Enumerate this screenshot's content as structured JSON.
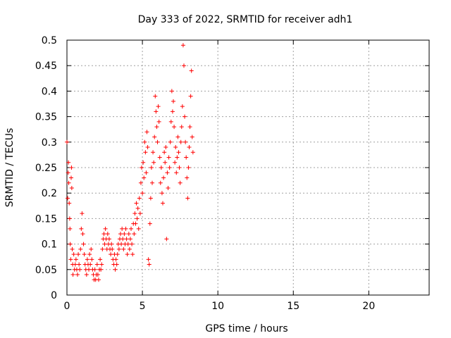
{
  "chart_data": {
    "type": "scatter",
    "title": "Day 333 of 2022, SRMTID for receiver adh1",
    "xlabel": "GPS time / hours",
    "ylabel": "SRMTID / TECUs",
    "xlim": [
      0,
      24
    ],
    "ylim": [
      0,
      0.5
    ],
    "x_ticks": [
      0,
      5,
      10,
      15,
      20
    ],
    "y_ticks": [
      0,
      0.05,
      0.1,
      0.15,
      0.2,
      0.25,
      0.3,
      0.35,
      0.4,
      0.45,
      0.5
    ],
    "x_tick_labels": [
      "0",
      "5",
      "10",
      "15",
      "20"
    ],
    "y_tick_labels": [
      "0",
      "0.05",
      "0.1",
      "0.15",
      "0.2",
      "0.25",
      "0.3",
      "0.35",
      "0.4",
      "0.45",
      "0.5"
    ],
    "grid": true,
    "marker": "+",
    "series": [
      {
        "name": "SRMTID",
        "color": "#ff0000",
        "points": [
          [
            0.0,
            0.3
          ],
          [
            0.05,
            0.19
          ],
          [
            0.08,
            0.24
          ],
          [
            0.1,
            0.26
          ],
          [
            0.12,
            0.22
          ],
          [
            0.15,
            0.18
          ],
          [
            0.18,
            0.15
          ],
          [
            0.2,
            0.13
          ],
          [
            0.22,
            0.1
          ],
          [
            0.25,
            0.07
          ],
          [
            0.28,
            0.23
          ],
          [
            0.3,
            0.25
          ],
          [
            0.32,
            0.21
          ],
          [
            0.35,
            0.09
          ],
          [
            0.38,
            0.06
          ],
          [
            0.4,
            0.04
          ],
          [
            0.45,
            0.08
          ],
          [
            0.5,
            0.05
          ],
          [
            0.55,
            0.06
          ],
          [
            0.6,
            0.07
          ],
          [
            0.65,
            0.05
          ],
          [
            0.7,
            0.04
          ],
          [
            0.75,
            0.08
          ],
          [
            0.8,
            0.06
          ],
          [
            0.85,
            0.05
          ],
          [
            0.9,
            0.09
          ],
          [
            0.95,
            0.13
          ],
          [
            1.0,
            0.16
          ],
          [
            1.05,
            0.12
          ],
          [
            1.1,
            0.1
          ],
          [
            1.15,
            0.08
          ],
          [
            1.2,
            0.06
          ],
          [
            1.25,
            0.05
          ],
          [
            1.3,
            0.04
          ],
          [
            1.35,
            0.07
          ],
          [
            1.4,
            0.06
          ],
          [
            1.45,
            0.05
          ],
          [
            1.5,
            0.08
          ],
          [
            1.55,
            0.06
          ],
          [
            1.6,
            0.09
          ],
          [
            1.65,
            0.07
          ],
          [
            1.7,
            0.05
          ],
          [
            1.75,
            0.04
          ],
          [
            1.8,
            0.03
          ],
          [
            1.85,
            0.05
          ],
          [
            1.9,
            0.03
          ],
          [
            1.95,
            0.04
          ],
          [
            2.0,
            0.06
          ],
          [
            2.05,
            0.04
          ],
          [
            2.1,
            0.03
          ],
          [
            2.15,
            0.05
          ],
          [
            2.2,
            0.07
          ],
          [
            2.25,
            0.05
          ],
          [
            2.3,
            0.06
          ],
          [
            2.35,
            0.09
          ],
          [
            2.4,
            0.11
          ],
          [
            2.45,
            0.12
          ],
          [
            2.5,
            0.1
          ],
          [
            2.55,
            0.13
          ],
          [
            2.6,
            0.11
          ],
          [
            2.65,
            0.09
          ],
          [
            2.7,
            0.12
          ],
          [
            2.75,
            0.1
          ],
          [
            2.8,
            0.11
          ],
          [
            2.85,
            0.09
          ],
          [
            2.9,
            0.08
          ],
          [
            2.95,
            0.1
          ],
          [
            3.0,
            0.09
          ],
          [
            3.05,
            0.07
          ],
          [
            3.1,
            0.06
          ],
          [
            3.15,
            0.08
          ],
          [
            3.2,
            0.05
          ],
          [
            3.25,
            0.07
          ],
          [
            3.3,
            0.06
          ],
          [
            3.35,
            0.08
          ],
          [
            3.4,
            0.1
          ],
          [
            3.45,
            0.09
          ],
          [
            3.5,
            0.11
          ],
          [
            3.55,
            0.12
          ],
          [
            3.6,
            0.1
          ],
          [
            3.65,
            0.13
          ],
          [
            3.7,
            0.11
          ],
          [
            3.75,
            0.09
          ],
          [
            3.8,
            0.12
          ],
          [
            3.85,
            0.1
          ],
          [
            3.9,
            0.13
          ],
          [
            3.95,
            0.11
          ],
          [
            4.0,
            0.08
          ],
          [
            4.05,
            0.1
          ],
          [
            4.1,
            0.12
          ],
          [
            4.15,
            0.09
          ],
          [
            4.2,
            0.11
          ],
          [
            4.25,
            0.13
          ],
          [
            4.3,
            0.1
          ],
          [
            4.35,
            0.08
          ],
          [
            4.4,
            0.14
          ],
          [
            4.45,
            0.12
          ],
          [
            4.5,
            0.16
          ],
          [
            4.55,
            0.14
          ],
          [
            4.6,
            0.18
          ],
          [
            4.65,
            0.15
          ],
          [
            4.7,
            0.17
          ],
          [
            4.75,
            0.13
          ],
          [
            4.8,
            0.19
          ],
          [
            4.85,
            0.16
          ],
          [
            4.9,
            0.22
          ],
          [
            4.95,
            0.25
          ],
          [
            5.0,
            0.2
          ],
          [
            5.05,
            0.26
          ],
          [
            5.1,
            0.23
          ],
          [
            5.15,
            0.3
          ],
          [
            5.2,
            0.28
          ],
          [
            5.25,
            0.24
          ],
          [
            5.3,
            0.32
          ],
          [
            5.35,
            0.29
          ],
          [
            5.4,
            0.07
          ],
          [
            5.45,
            0.06
          ],
          [
            5.5,
            0.14
          ],
          [
            5.55,
            0.19
          ],
          [
            5.6,
            0.25
          ],
          [
            5.65,
            0.22
          ],
          [
            5.7,
            0.28
          ],
          [
            5.75,
            0.26
          ],
          [
            5.8,
            0.31
          ],
          [
            5.85,
            0.39
          ],
          [
            5.9,
            0.36
          ],
          [
            5.95,
            0.33
          ],
          [
            6.0,
            0.3
          ],
          [
            6.05,
            0.37
          ],
          [
            6.1,
            0.34
          ],
          [
            6.15,
            0.27
          ],
          [
            6.2,
            0.22
          ],
          [
            6.25,
            0.25
          ],
          [
            6.3,
            0.2
          ],
          [
            6.35,
            0.18
          ],
          [
            6.4,
            0.23
          ],
          [
            6.45,
            0.28
          ],
          [
            6.5,
            0.26
          ],
          [
            6.55,
            0.29
          ],
          [
            6.6,
            0.11
          ],
          [
            6.65,
            0.24
          ],
          [
            6.7,
            0.21
          ],
          [
            6.75,
            0.27
          ],
          [
            6.8,
            0.25
          ],
          [
            6.85,
            0.3
          ],
          [
            6.9,
            0.34
          ],
          [
            6.95,
            0.4
          ],
          [
            7.0,
            0.36
          ],
          [
            7.05,
            0.38
          ],
          [
            7.1,
            0.33
          ],
          [
            7.15,
            0.26
          ],
          [
            7.2,
            0.29
          ],
          [
            7.25,
            0.24
          ],
          [
            7.3,
            0.27
          ],
          [
            7.35,
            0.31
          ],
          [
            7.4,
            0.28
          ],
          [
            7.45,
            0.25
          ],
          [
            7.5,
            0.22
          ],
          [
            7.55,
            0.3
          ],
          [
            7.6,
            0.33
          ],
          [
            7.65,
            0.37
          ],
          [
            7.7,
            0.49
          ],
          [
            7.75,
            0.45
          ],
          [
            7.8,
            0.35
          ],
          [
            7.85,
            0.3
          ],
          [
            7.9,
            0.27
          ],
          [
            7.95,
            0.23
          ],
          [
            8.0,
            0.19
          ],
          [
            8.05,
            0.25
          ],
          [
            8.1,
            0.29
          ],
          [
            8.15,
            0.33
          ],
          [
            8.2,
            0.39
          ],
          [
            8.25,
            0.44
          ],
          [
            8.3,
            0.31
          ],
          [
            8.35,
            0.28
          ]
        ]
      }
    ]
  }
}
